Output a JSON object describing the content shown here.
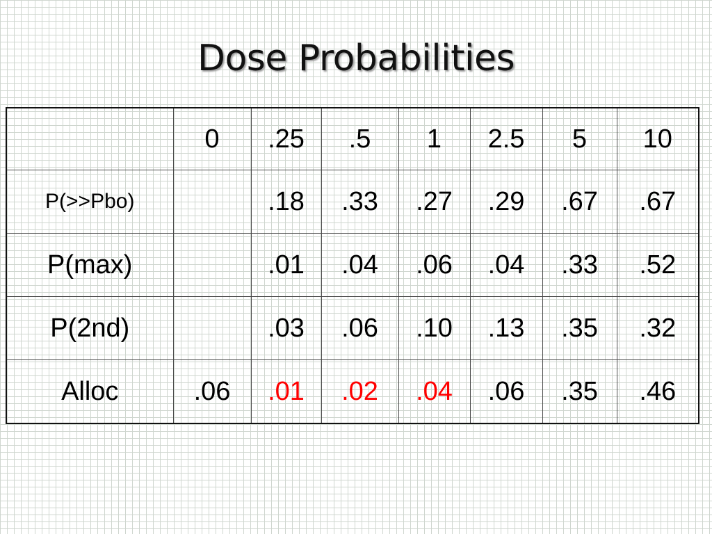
{
  "title": "Dose Probabilities",
  "table": {
    "header": [
      "",
      "0",
      ".25",
      ".5",
      "1",
      "2.5",
      "5",
      "10"
    ],
    "rows": [
      {
        "label": "P(>>Pbo)",
        "cells": [
          {
            "text": ""
          },
          {
            "text": ".18"
          },
          {
            "text": ".33"
          },
          {
            "text": ".27"
          },
          {
            "text": ".29"
          },
          {
            "text": ".67"
          },
          {
            "text": ".67"
          }
        ]
      },
      {
        "label": "P(max)",
        "cells": [
          {
            "text": ""
          },
          {
            "text": ".01"
          },
          {
            "text": ".04"
          },
          {
            "text": ".06"
          },
          {
            "text": ".04"
          },
          {
            "text": ".33"
          },
          {
            "text": ".52"
          }
        ]
      },
      {
        "label": "P(2nd)",
        "cells": [
          {
            "text": ""
          },
          {
            "text": ".03"
          },
          {
            "text": ".06"
          },
          {
            "text": ".10"
          },
          {
            "text": ".13"
          },
          {
            "text": ".35"
          },
          {
            "text": ".32"
          }
        ]
      },
      {
        "label": "Alloc",
        "cells": [
          {
            "text": ".06"
          },
          {
            "text": ".01",
            "color": "#ff0000"
          },
          {
            "text": ".02",
            "color": "#ff0000"
          },
          {
            "text": ".04",
            "color": "#ff0000"
          },
          {
            "text": ".06"
          },
          {
            "text": ".35"
          },
          {
            "text": ".46"
          }
        ]
      }
    ]
  }
}
